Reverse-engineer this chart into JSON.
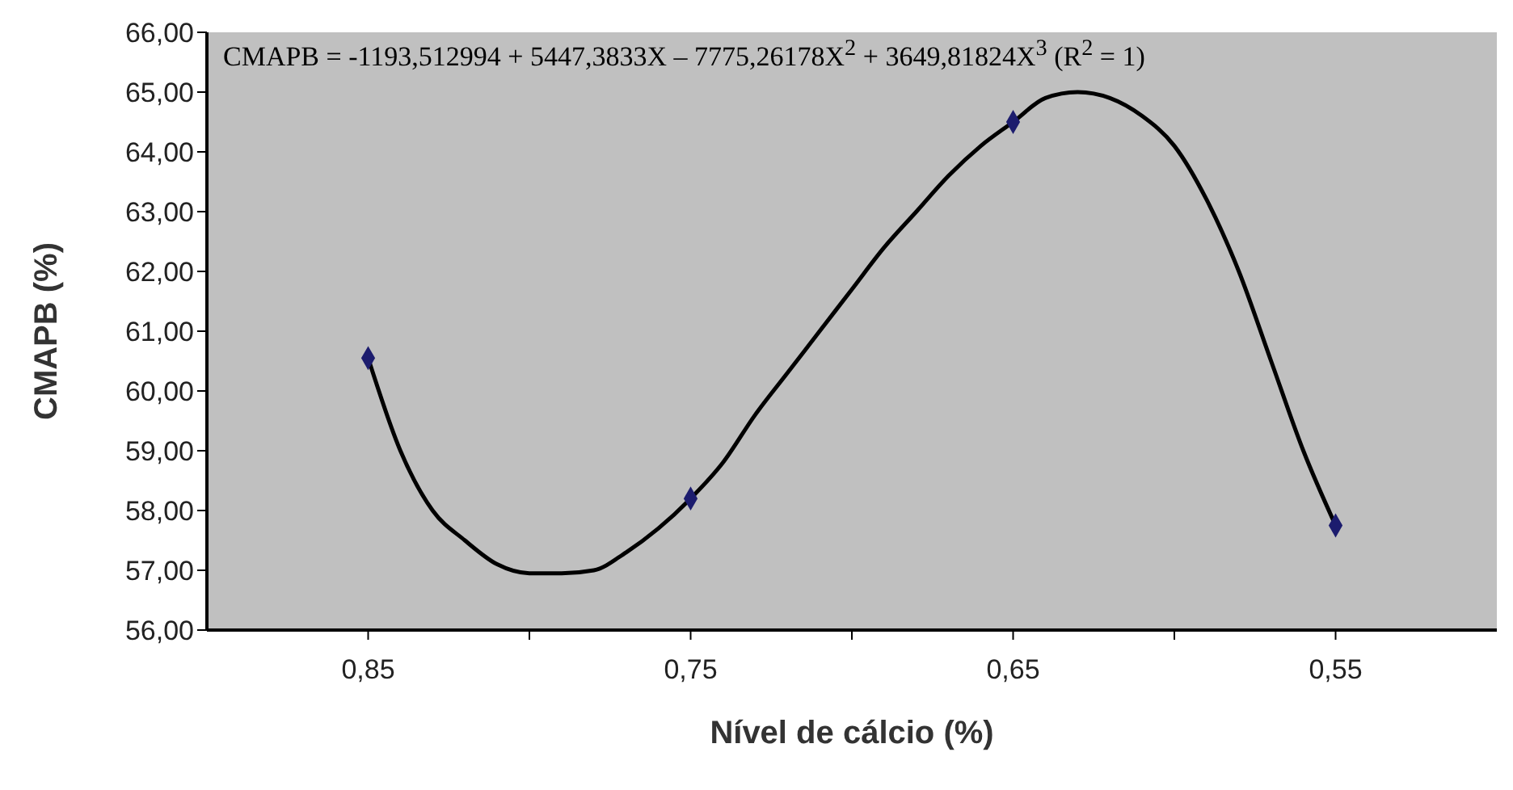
{
  "chart_data": {
    "type": "scatter",
    "xlabel": "Nível de cálcio (%)",
    "ylabel": "CMAPB (%)",
    "annotations": [
      "CMAPB = -1193,512994 + 5447,3833X – 7775,26178X$^{2}$ + 3649,81824X$^{3}$ (R$^{2}$ = 1)"
    ],
    "x": [
      0.85,
      0.75,
      0.65,
      0.55
    ],
    "series": [
      {
        "color": "#1c1c6e",
        "marker": "diamond",
        "values": [
          60.55,
          58.2,
          64.5,
          57.75
        ]
      },
      {
        "type": "line",
        "color": "#000000",
        "marker": "none",
        "line_style": "solid",
        "x": [
          0.85,
          0.84,
          0.83,
          0.82,
          0.81,
          0.8,
          0.79,
          0.78,
          0.77,
          0.76,
          0.75,
          0.74,
          0.73,
          0.72,
          0.71,
          0.7,
          0.69,
          0.68,
          0.67,
          0.66,
          0.65,
          0.64,
          0.63,
          0.62,
          0.61,
          0.6,
          0.59,
          0.58,
          0.57,
          0.56,
          0.55
        ],
        "values": [
          60.55,
          59.0,
          58.0,
          57.5,
          57.1,
          56.95,
          56.95,
          57.0,
          57.3,
          57.7,
          58.2,
          58.8,
          59.6,
          60.3,
          61.0,
          61.7,
          62.4,
          63.0,
          63.6,
          64.1,
          64.5,
          64.9,
          65.0,
          64.9,
          64.6,
          64.1,
          63.2,
          62.0,
          60.5,
          59.0,
          57.75
        ]
      }
    ],
    "xlim": [
      0.9,
      0.5
    ],
    "xticks": [
      {
        "value": 0.85,
        "label": "0,85"
      },
      {
        "value": 0.8,
        "label": null
      },
      {
        "value": 0.75,
        "label": "0,75"
      },
      {
        "value": 0.7,
        "label": null
      },
      {
        "value": 0.65,
        "label": "0,65"
      },
      {
        "value": 0.6,
        "label": null
      },
      {
        "value": 0.55,
        "label": "0,55"
      }
    ],
    "ylim": [
      56,
      66
    ],
    "yticks": [
      {
        "value": 56,
        "label": "56,00"
      },
      {
        "value": 57,
        "label": "57,00"
      },
      {
        "value": 58,
        "label": "58,00"
      },
      {
        "value": 59,
        "label": "59,00"
      },
      {
        "value": 60,
        "label": "60,00"
      },
      {
        "value": 61,
        "label": "61,00"
      },
      {
        "value": 62,
        "label": "62,00"
      },
      {
        "value": 63,
        "label": "63,00"
      },
      {
        "value": 64,
        "label": "64,00"
      },
      {
        "value": 65,
        "label": "65,00"
      },
      {
        "value": 66,
        "label": "66,00"
      }
    ],
    "grid": false
  }
}
